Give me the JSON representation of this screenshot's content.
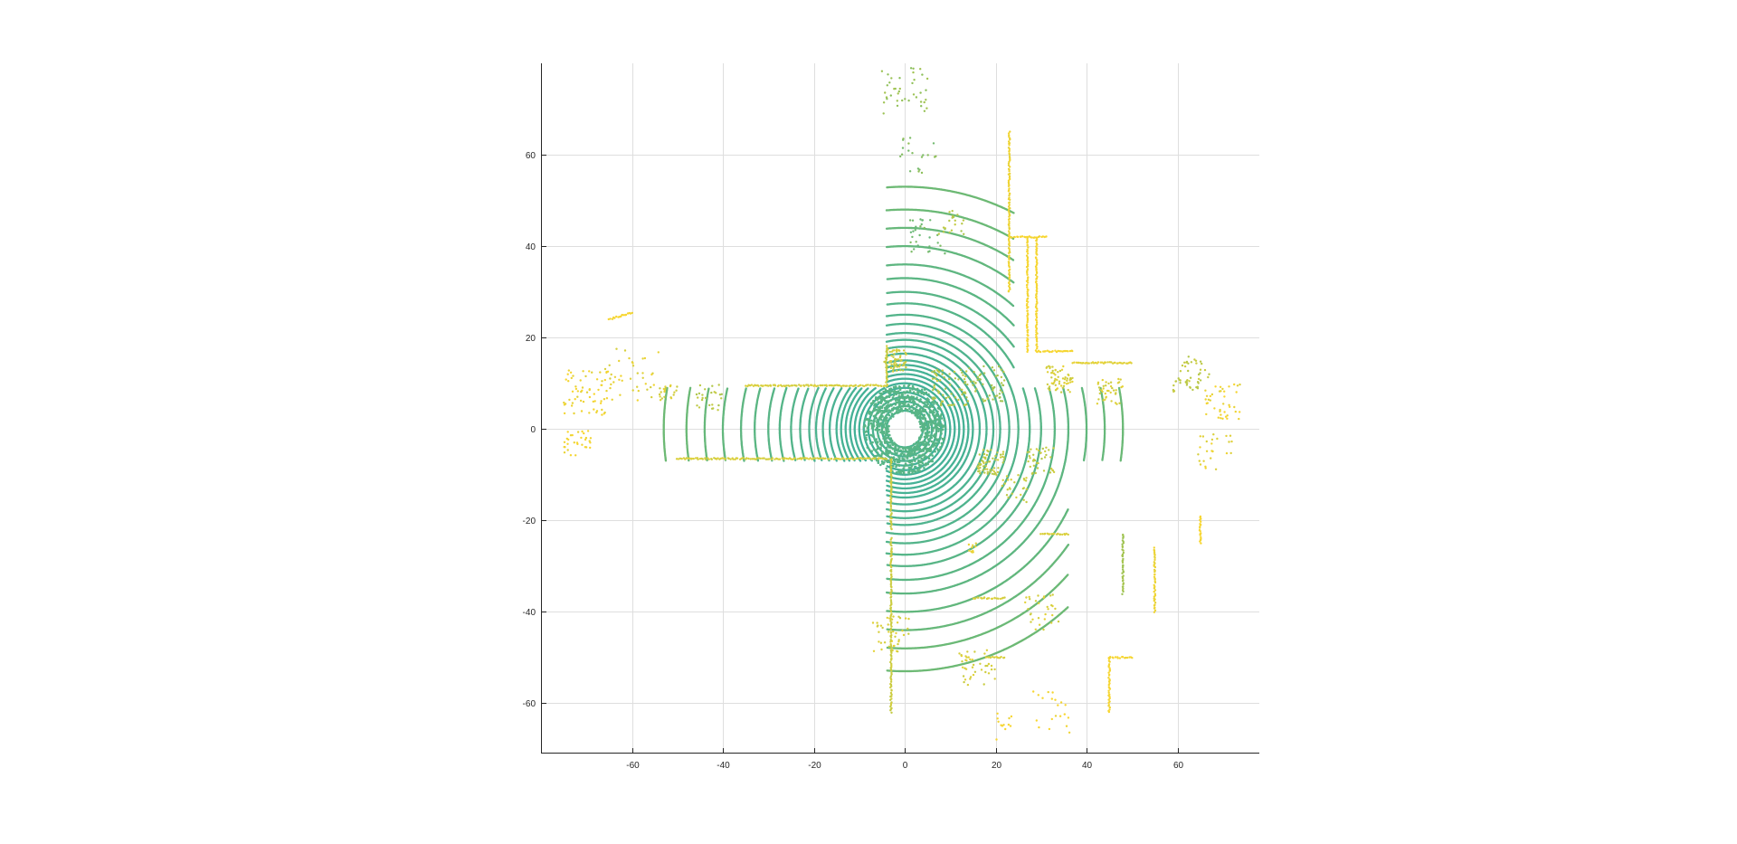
{
  "chart_data": {
    "type": "scatter",
    "title": "",
    "xlabel": "",
    "ylabel": "",
    "xlim": [
      -80,
      78
    ],
    "ylim": [
      -71,
      80
    ],
    "grid": true,
    "legend": "none",
    "xticks": [
      -60,
      -40,
      -20,
      0,
      20,
      40,
      60
    ],
    "yticks": [
      -60,
      -40,
      -20,
      0,
      20,
      40,
      60
    ],
    "xtick_labels": [
      "-60",
      "-40",
      "-20",
      "0",
      "20",
      "40",
      "60"
    ],
    "ytick_labels": [
      "-60",
      "-40",
      "-20",
      "0",
      "20",
      "40",
      "60"
    ],
    "colormap": {
      "low": "#24ABB2",
      "mid": "#8CBF5A",
      "high": "#F8D630"
    },
    "description_free": true,
    "rings": {
      "center": [
        0,
        0
      ],
      "radii": [
        4,
        5,
        6,
        7,
        8,
        9,
        10,
        11,
        12,
        13,
        14,
        15,
        16.5,
        18,
        19.5,
        21,
        23,
        25,
        27.5,
        30,
        33,
        36,
        40,
        44,
        48,
        53
      ],
      "corridors": [
        {
          "direction": "west",
          "y_range": [
            -7,
            9
          ],
          "x_range": [
            -60,
            -4
          ]
        },
        {
          "direction": "east",
          "y_range": [
            -7,
            9
          ],
          "x_range": [
            4,
            52
          ]
        },
        {
          "direction": "north",
          "x_range": [
            -4,
            24
          ],
          "y_range": [
            4,
            78
          ]
        },
        {
          "direction": "south",
          "x_range": [
            -4,
            36
          ],
          "y_range": [
            -62,
            -4
          ]
        }
      ]
    },
    "segments": [
      {
        "x": [
          -35,
          -4
        ],
        "y": [
          9.5,
          9.5
        ],
        "level": 0.85
      },
      {
        "x": [
          -50,
          -4
        ],
        "y": [
          -6.5,
          -6.5
        ],
        "level": 0.85
      },
      {
        "x": [
          -4,
          -4
        ],
        "y": [
          9.5,
          18
        ],
        "level": 0.8
      },
      {
        "x": [
          -3,
          -3
        ],
        "y": [
          -6.5,
          -22
        ],
        "level": 0.8
      },
      {
        "x": [
          -3,
          -3
        ],
        "y": [
          -24,
          -62
        ],
        "level": 0.8
      },
      {
        "x": [
          23,
          23
        ],
        "y": [
          30,
          65
        ],
        "level": 0.95
      },
      {
        "x": [
          23,
          31
        ],
        "y": [
          42,
          42
        ],
        "level": 1.0
      },
      {
        "x": [
          27,
          27
        ],
        "y": [
          42,
          17
        ],
        "level": 1.0
      },
      {
        "x": [
          29,
          29
        ],
        "y": [
          42,
          17
        ],
        "level": 1.0
      },
      {
        "x": [
          29,
          37
        ],
        "y": [
          17,
          17
        ],
        "level": 1.0
      },
      {
        "x": [
          37,
          50
        ],
        "y": [
          14.5,
          14.5
        ],
        "level": 0.9
      },
      {
        "x": [
          45,
          45
        ],
        "y": [
          -50,
          -62
        ],
        "level": 1.0
      },
      {
        "x": [
          45,
          50
        ],
        "y": [
          -50,
          -50
        ],
        "level": 1.0
      },
      {
        "x": [
          55,
          55
        ],
        "y": [
          -26,
          -40
        ],
        "level": 0.95
      },
      {
        "x": [
          48,
          48
        ],
        "y": [
          -23,
          -36
        ],
        "level": 0.6
      },
      {
        "x": [
          65,
          65
        ],
        "y": [
          -19,
          -25
        ],
        "level": 1.0
      },
      {
        "x": [
          -65,
          -60
        ],
        "y": [
          24,
          25.5
        ],
        "level": 1.0
      },
      {
        "x": [
          15,
          22
        ],
        "y": [
          -37,
          -37
        ],
        "level": 0.85
      },
      {
        "x": [
          30,
          36
        ],
        "y": [
          -23,
          -23
        ],
        "level": 0.85
      },
      {
        "x": [
          18,
          22
        ],
        "y": [
          -50,
          -50
        ],
        "level": 0.85
      }
    ],
    "clusters": [
      {
        "x": -70,
        "y": 8,
        "n": 60,
        "spread": 5,
        "level": 0.95
      },
      {
        "x": -60,
        "y": 12,
        "n": 40,
        "spread": 6,
        "level": 0.9
      },
      {
        "x": -72,
        "y": -3,
        "n": 30,
        "spread": 3,
        "level": 1.0
      },
      {
        "x": -43,
        "y": 7,
        "n": 25,
        "spread": 3,
        "level": 0.7
      },
      {
        "x": -52,
        "y": 8,
        "n": 20,
        "spread": 2,
        "level": 0.85
      },
      {
        "x": 0,
        "y": 74,
        "n": 40,
        "spread": 5,
        "level": 0.55
      },
      {
        "x": 3,
        "y": 60,
        "n": 20,
        "spread": 4,
        "level": 0.45
      },
      {
        "x": 5,
        "y": 42,
        "n": 30,
        "spread": 4,
        "level": 0.4
      },
      {
        "x": 10,
        "y": 45,
        "n": 20,
        "spread": 3,
        "level": 0.7
      },
      {
        "x": -2,
        "y": 15,
        "n": 60,
        "spread": 2.5,
        "level": 0.8
      },
      {
        "x": 10,
        "y": 9,
        "n": 70,
        "spread": 4,
        "level": 0.7
      },
      {
        "x": 18,
        "y": 10,
        "n": 50,
        "spread": 4,
        "level": 0.65
      },
      {
        "x": 34,
        "y": 11,
        "n": 60,
        "spread": 3,
        "level": 0.85
      },
      {
        "x": 45,
        "y": 8,
        "n": 40,
        "spread": 3,
        "level": 0.85
      },
      {
        "x": 19,
        "y": -7,
        "n": 60,
        "spread": 3,
        "level": 0.75
      },
      {
        "x": 30,
        "y": -7,
        "n": 40,
        "spread": 3,
        "level": 0.75
      },
      {
        "x": 63,
        "y": 12,
        "n": 50,
        "spread": 4,
        "level": 0.75
      },
      {
        "x": 70,
        "y": 6,
        "n": 40,
        "spread": 4,
        "level": 0.95
      },
      {
        "x": 68,
        "y": -5,
        "n": 25,
        "spread": 4,
        "level": 0.9
      },
      {
        "x": 16,
        "y": -52,
        "n": 40,
        "spread": 4,
        "level": 0.85
      },
      {
        "x": 30,
        "y": -40,
        "n": 30,
        "spread": 4,
        "level": 0.85
      },
      {
        "x": 33,
        "y": -62,
        "n": 20,
        "spread": 5,
        "level": 1.0
      },
      {
        "x": 22,
        "y": -65,
        "n": 12,
        "spread": 3,
        "level": 1.0
      },
      {
        "x": -3,
        "y": -45,
        "n": 40,
        "spread": 4,
        "level": 0.85
      },
      {
        "x": 15,
        "y": -26,
        "n": 10,
        "spread": 1,
        "level": 0.9
      },
      {
        "x": 24,
        "y": -13,
        "n": 25,
        "spread": 3,
        "level": 0.8
      }
    ]
  }
}
